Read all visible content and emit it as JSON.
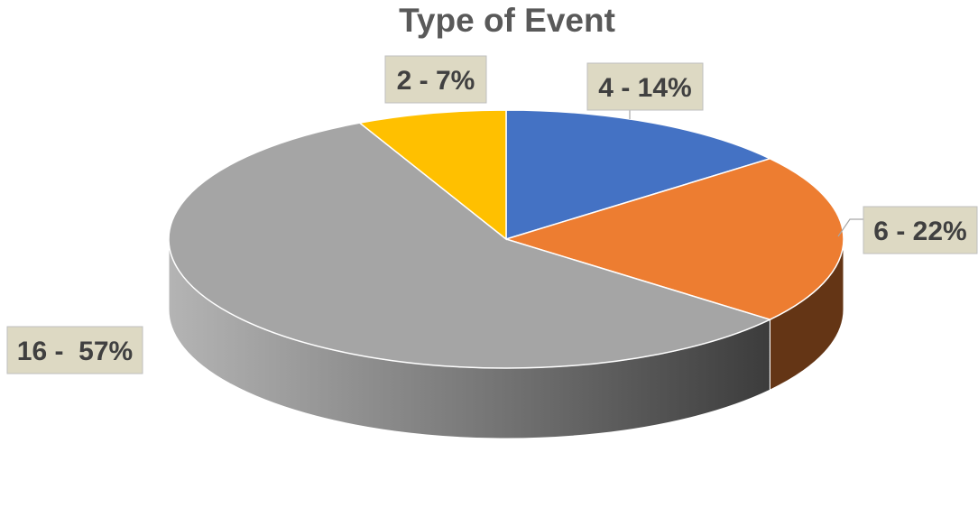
{
  "chart_data": {
    "type": "pie",
    "title": "Type of Event",
    "style": "3d",
    "slices": [
      {
        "value": 4,
        "label": "4 - 14%",
        "color": "#4472C4"
      },
      {
        "value": 6,
        "label": "6 - 22%",
        "color": "#ED7D31"
      },
      {
        "value": 16,
        "label": "16 -  57%",
        "color": "#A5A5A5"
      },
      {
        "value": 2,
        "label": "2 - 7%",
        "color": "#FFC000"
      }
    ],
    "label_box_color": "#DDD9C3",
    "label_border_color": "#BFBFBF",
    "legend": "none"
  }
}
